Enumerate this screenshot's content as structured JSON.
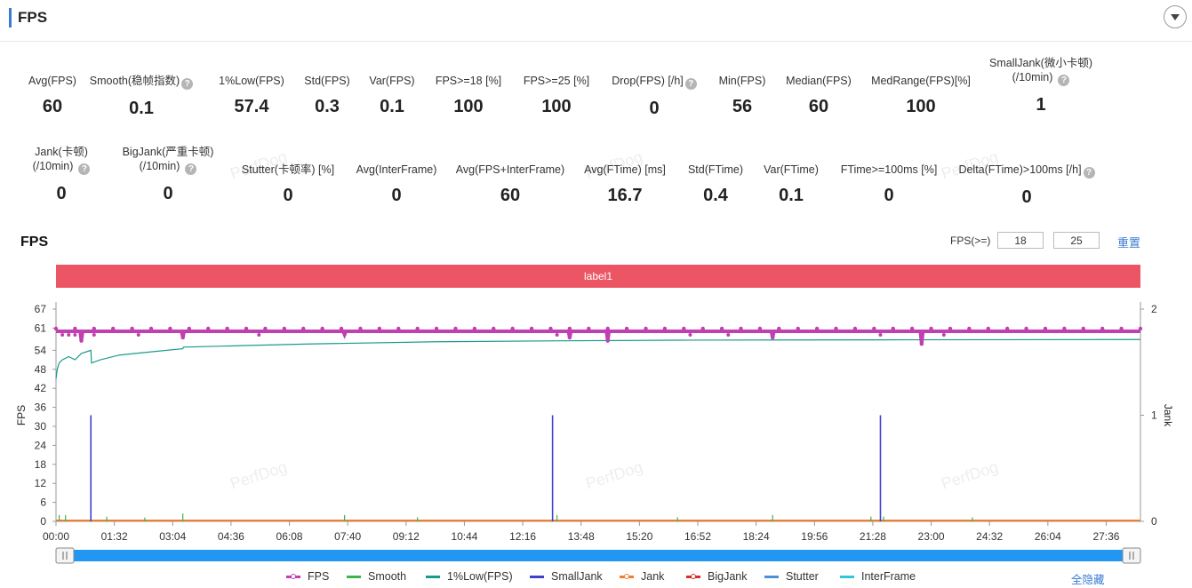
{
  "header": {
    "title": "FPS"
  },
  "metrics_row1": [
    {
      "label": "Avg(FPS)",
      "value": "60",
      "help": false
    },
    {
      "label": "Smooth(稳帧指数)",
      "value": "0.1",
      "help": true
    },
    {
      "label": "1%Low(FPS)",
      "value": "57.4",
      "help": false
    },
    {
      "label": "Std(FPS)",
      "value": "0.3",
      "help": false
    },
    {
      "label": "Var(FPS)",
      "value": "0.1",
      "help": false
    },
    {
      "label": "FPS>=18 [%]",
      "value": "100",
      "help": false
    },
    {
      "label": "FPS>=25 [%]",
      "value": "100",
      "help": false
    },
    {
      "label": "Drop(FPS) [/h]",
      "value": "0",
      "help": true
    },
    {
      "label": "Min(FPS)",
      "value": "56",
      "help": false
    },
    {
      "label": "Median(FPS)",
      "value": "60",
      "help": false
    },
    {
      "label": "MedRange(FPS)[%]",
      "value": "100",
      "help": false
    },
    {
      "label": "SmallJank(微小卡顿)",
      "label2": "(/10min)",
      "value": "1",
      "help": true
    }
  ],
  "metrics_row2": [
    {
      "label": "Jank(卡顿)",
      "label2": "(/10min)",
      "value": "0",
      "help": true
    },
    {
      "label": "BigJank(严重卡顿)",
      "label2": "(/10min)",
      "value": "0",
      "help": true
    },
    {
      "label": "Stutter(卡顿率) [%]",
      "value": "0",
      "help": false
    },
    {
      "label": "Avg(InterFrame)",
      "value": "0",
      "help": false
    },
    {
      "label": "Avg(FPS+InterFrame)",
      "value": "60",
      "help": false
    },
    {
      "label": "Avg(FTime) [ms]",
      "value": "16.7",
      "help": false
    },
    {
      "label": "Std(FTime)",
      "value": "0.4",
      "help": false
    },
    {
      "label": "Var(FTime)",
      "value": "0.1",
      "help": false
    },
    {
      "label": "FTime>=100ms [%]",
      "value": "0",
      "help": false
    },
    {
      "label": "Delta(FTime)>100ms [/h]",
      "value": "0",
      "help": true
    }
  ],
  "chart_header": {
    "title": "FPS",
    "filter_label": "FPS(>=)",
    "threshold1": "18",
    "threshold2": "25",
    "reset_label": "重置",
    "region_label": "label1"
  },
  "watermark_text": "PerfDog",
  "legend": {
    "items": [
      {
        "name": "FPS",
        "color": "#c040b0",
        "style": "dot-line"
      },
      {
        "name": "Smooth",
        "color": "#3cb44b",
        "style": "line"
      },
      {
        "name": "1%Low(FPS)",
        "color": "#1a9a8a",
        "style": "line"
      },
      {
        "name": "SmallJank",
        "color": "#4040d0",
        "style": "line"
      },
      {
        "name": "Jank",
        "color": "#f08030",
        "style": "dot-line"
      },
      {
        "name": "BigJank",
        "color": "#d03030",
        "style": "dot-line"
      },
      {
        "name": "Stutter",
        "color": "#4a90d9",
        "style": "line"
      },
      {
        "name": "InterFrame",
        "color": "#30c8d8",
        "style": "line"
      }
    ],
    "hide_all_label": "全隐藏"
  },
  "chart_data": {
    "type": "line",
    "title": "FPS",
    "ylabel": "FPS",
    "y2label": "Jank",
    "ylim": [
      0,
      67
    ],
    "y_ticks": [
      "0",
      "6",
      "12",
      "18",
      "24",
      "30",
      "36",
      "42",
      "48",
      "54",
      "61",
      "67"
    ],
    "y2lim": [
      0,
      2
    ],
    "y2_ticks": [
      "0",
      "1",
      "2"
    ],
    "x_ticks": [
      "00:00",
      "01:32",
      "03:04",
      "04:36",
      "06:08",
      "07:40",
      "09:12",
      "10:44",
      "12:16",
      "13:48",
      "15:20",
      "16:52",
      "18:24",
      "19:56",
      "21:28",
      "23:00",
      "24:32",
      "26:04",
      "27:36"
    ],
    "x_range_seconds": [
      0,
      1710
    ],
    "grid": false,
    "legend_position": "bottom",
    "series": [
      {
        "name": "FPS",
        "axis": "left",
        "baseline": 60,
        "dips": [
          [
            40,
            57
          ],
          [
            200,
            58
          ],
          [
            455,
            59
          ],
          [
            810,
            58
          ],
          [
            870,
            57
          ],
          [
            1130,
            58
          ],
          [
            1365,
            56
          ]
        ]
      },
      {
        "name": "1%Low(FPS)",
        "axis": "left",
        "points": [
          [
            0,
            45
          ],
          [
            2,
            48
          ],
          [
            5,
            50
          ],
          [
            10,
            51
          ],
          [
            20,
            52
          ],
          [
            30,
            51
          ],
          [
            40,
            53
          ],
          [
            55,
            54
          ],
          [
            56,
            50
          ],
          [
            70,
            51
          ],
          [
            100,
            52.5
          ],
          [
            150,
            53.5
          ],
          [
            200,
            54.5
          ],
          [
            201,
            55
          ],
          [
            300,
            55.5
          ],
          [
            400,
            56
          ],
          [
            600,
            56.7
          ],
          [
            800,
            57
          ],
          [
            1000,
            57.2
          ],
          [
            1300,
            57.3
          ],
          [
            1710,
            57.4
          ]
        ]
      },
      {
        "name": "SmallJank",
        "axis": "right",
        "spikes": [
          55,
          783,
          1300
        ],
        "spike_value": 1
      },
      {
        "name": "Smooth",
        "axis": "left",
        "spikes": [
          [
            5,
            2
          ],
          [
            15,
            2
          ],
          [
            80,
            1.5
          ],
          [
            140,
            1.2
          ],
          [
            200,
            2.5
          ],
          [
            455,
            2
          ],
          [
            570,
            1.3
          ],
          [
            790,
            2
          ],
          [
            980,
            1.3
          ],
          [
            1130,
            2
          ],
          [
            1285,
            1.5
          ],
          [
            1305,
            1.5
          ],
          [
            1445,
            1.3
          ]
        ]
      },
      {
        "name": "Jank",
        "axis": "right",
        "constant": 0
      },
      {
        "name": "BigJank",
        "axis": "right",
        "constant": 0
      }
    ]
  }
}
